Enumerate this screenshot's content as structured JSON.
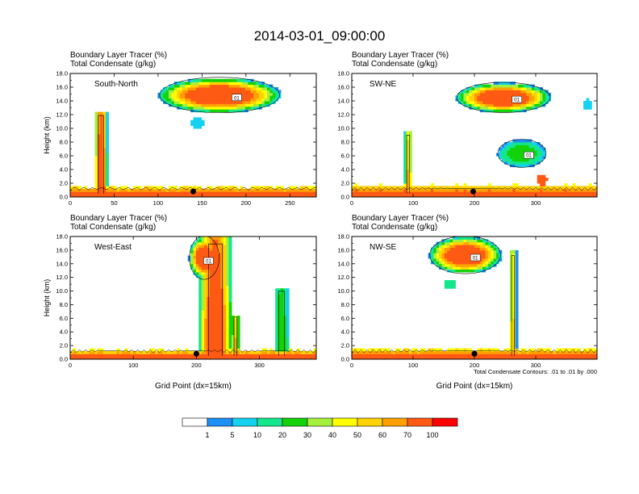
{
  "title": "2014-03-01_09:00:00",
  "panel_title_line1": "Boundary Layer Tracer   (%)",
  "panel_title_line2": "Total Condensate   (g/kg)",
  "ylabel": "Height (km)",
  "xlabel": "Grid Point (dx=15km)",
  "contour_note": "Total Condensate Contours: .01 to .01 by .000",
  "contour_label": "01",
  "colorbar": {
    "ticks": [
      "1",
      "5",
      "10",
      "20",
      "30",
      "40",
      "50",
      "60",
      "70",
      "100"
    ],
    "colors": [
      "#ffffff",
      "#1e8ff5",
      "#14d2f0",
      "#14e68c",
      "#14d20a",
      "#a5f03c",
      "#ffff00",
      "#ffd200",
      "#ffa000",
      "#ff5a14",
      "#ff0000"
    ]
  },
  "chart_data": [
    {
      "type": "heatmap",
      "panel": "South-North",
      "title_lines": [
        "Boundary Layer Tracer   (%)",
        "Total Condensate   (g/kg)"
      ],
      "ylabel": "Height (km)",
      "xlabel": "",
      "xlim": [
        0,
        280
      ],
      "ylim": [
        0,
        18
      ],
      "xticks": [
        "0",
        "50",
        "100",
        "150",
        "200",
        "250"
      ],
      "xtick_values": [
        0,
        50,
        100,
        150,
        200,
        250
      ],
      "yticks": [
        "0.0",
        "2.0",
        "4.0",
        "6.0",
        "8.0",
        "10.0",
        "12.0",
        "14.0",
        "16.0",
        "18.0"
      ],
      "yticks_values": [
        0,
        2,
        4,
        6,
        8,
        10,
        12,
        14,
        16,
        18
      ],
      "features": [
        {
          "kind": "boundary_layer",
          "x": [
            0,
            280
          ],
          "top_km": 1.3,
          "peak": 100
        },
        {
          "kind": "plume",
          "x_center": 35,
          "half_width": 5,
          "top_km": 12.5,
          "peak": 100
        },
        {
          "kind": "anvil",
          "x": [
            105,
            235
          ],
          "y": [
            12.5,
            17.2
          ],
          "peak": 100
        },
        {
          "kind": "patch",
          "x_center": 145,
          "y_center": 10.8,
          "peak": 5
        }
      ],
      "marker_x": 140
    },
    {
      "type": "heatmap",
      "panel": "SW-NE",
      "title_lines": [
        "Boundary Layer Tracer   (%)",
        "Total Condensate   (g/kg)"
      ],
      "ylabel": "",
      "xlabel": "",
      "xlim": [
        0,
        400
      ],
      "ylim": [
        0,
        18
      ],
      "xticks": [
        "0",
        "100",
        "200",
        "300"
      ],
      "xtick_values": [
        0,
        100,
        200,
        300
      ],
      "yticks": [
        "0.0",
        "2.0",
        "4.0",
        "6.0",
        "8.0",
        "10.0",
        "12.0",
        "14.0",
        "16.0",
        "18.0"
      ],
      "yticks_values": [
        0,
        2,
        4,
        6,
        8,
        10,
        12,
        14,
        16,
        18
      ],
      "features": [
        {
          "kind": "boundary_layer",
          "x": [
            0,
            400
          ],
          "top_km": 1.5,
          "peak": 100
        },
        {
          "kind": "plume",
          "x_center": 92,
          "half_width": 4,
          "top_km": 9.5,
          "peak": 70
        },
        {
          "kind": "anvil",
          "x": [
            175,
            320
          ],
          "y": [
            12.5,
            16.5
          ],
          "peak": 100
        },
        {
          "kind": "anvil",
          "x": [
            240,
            315
          ],
          "y": [
            4.5,
            8.2
          ],
          "peak": 30
        },
        {
          "kind": "patch",
          "x_center": 310,
          "y_center": 2.5,
          "peak": 60
        },
        {
          "kind": "patch",
          "x_center": 385,
          "y_center": 13.5,
          "peak": 5
        }
      ],
      "marker_x": 198
    },
    {
      "type": "heatmap",
      "panel": "West-East",
      "title_lines": [
        "Boundary Layer Tracer   (%)",
        "Total Condensate   (g/kg)"
      ],
      "ylabel": "Height (km)",
      "xlabel": "Grid Point (dx=15km)",
      "xlim": [
        0,
        390
      ],
      "ylim": [
        0,
        18
      ],
      "xticks": [
        "0",
        "100",
        "200",
        "300"
      ],
      "xtick_values": [
        0,
        100,
        200,
        300
      ],
      "yticks": [
        "0.0",
        "2.0",
        "4.0",
        "6.0",
        "8.0",
        "10.0",
        "12.0",
        "14.0",
        "16.0",
        "18.0"
      ],
      "yticks_values": [
        0,
        2,
        4,
        6,
        8,
        10,
        12,
        14,
        16,
        18
      ],
      "features": [
        {
          "kind": "boundary_layer",
          "x": [
            0,
            390
          ],
          "top_km": 1.2,
          "peak": 100
        },
        {
          "kind": "plume",
          "x_center": 230,
          "half_width": 18,
          "top_km": 17.8,
          "peak": 100
        },
        {
          "kind": "anvil",
          "x": [
            190,
            235
          ],
          "y": [
            12.0,
            17.8
          ],
          "peak": 100
        },
        {
          "kind": "plume",
          "x_center": 262,
          "half_width": 4,
          "top_km": 6.5,
          "peak": 70
        },
        {
          "kind": "plume",
          "x_center": 335,
          "half_width": 8,
          "top_km": 10.5,
          "peak": 30
        }
      ],
      "marker_x": 200
    },
    {
      "type": "heatmap",
      "panel": "NW-SE",
      "title_lines": [
        "Boundary Layer Tracer   (%)",
        "Total Condensate   (g/kg)"
      ],
      "ylabel": "",
      "xlabel": "Grid Point (dx=15km)",
      "xlim": [
        0,
        400
      ],
      "ylim": [
        0,
        18
      ],
      "xticks": [
        "0",
        "100",
        "200",
        "300"
      ],
      "xtick_values": [
        0,
        100,
        200,
        300
      ],
      "yticks": [
        "0.0",
        "2.0",
        "4.0",
        "6.0",
        "8.0",
        "10.0",
        "12.0",
        "14.0",
        "16.0",
        "18.0"
      ],
      "yticks_values": [
        0,
        2,
        4,
        6,
        8,
        10,
        12,
        14,
        16,
        18
      ],
      "features": [
        {
          "kind": "boundary_layer",
          "x": [
            0,
            400
          ],
          "top_km": 1.3,
          "peak": 100
        },
        {
          "kind": "anvil",
          "x": [
            130,
            240
          ],
          "y": [
            12.8,
            17.8
          ],
          "peak": 100
        },
        {
          "kind": "plume",
          "x_center": 263,
          "half_width": 4,
          "top_km": 16.0,
          "peak": 60
        },
        {
          "kind": "patch",
          "x_center": 160,
          "y_center": 11.0,
          "peak": 10
        }
      ],
      "marker_x": 200
    }
  ]
}
